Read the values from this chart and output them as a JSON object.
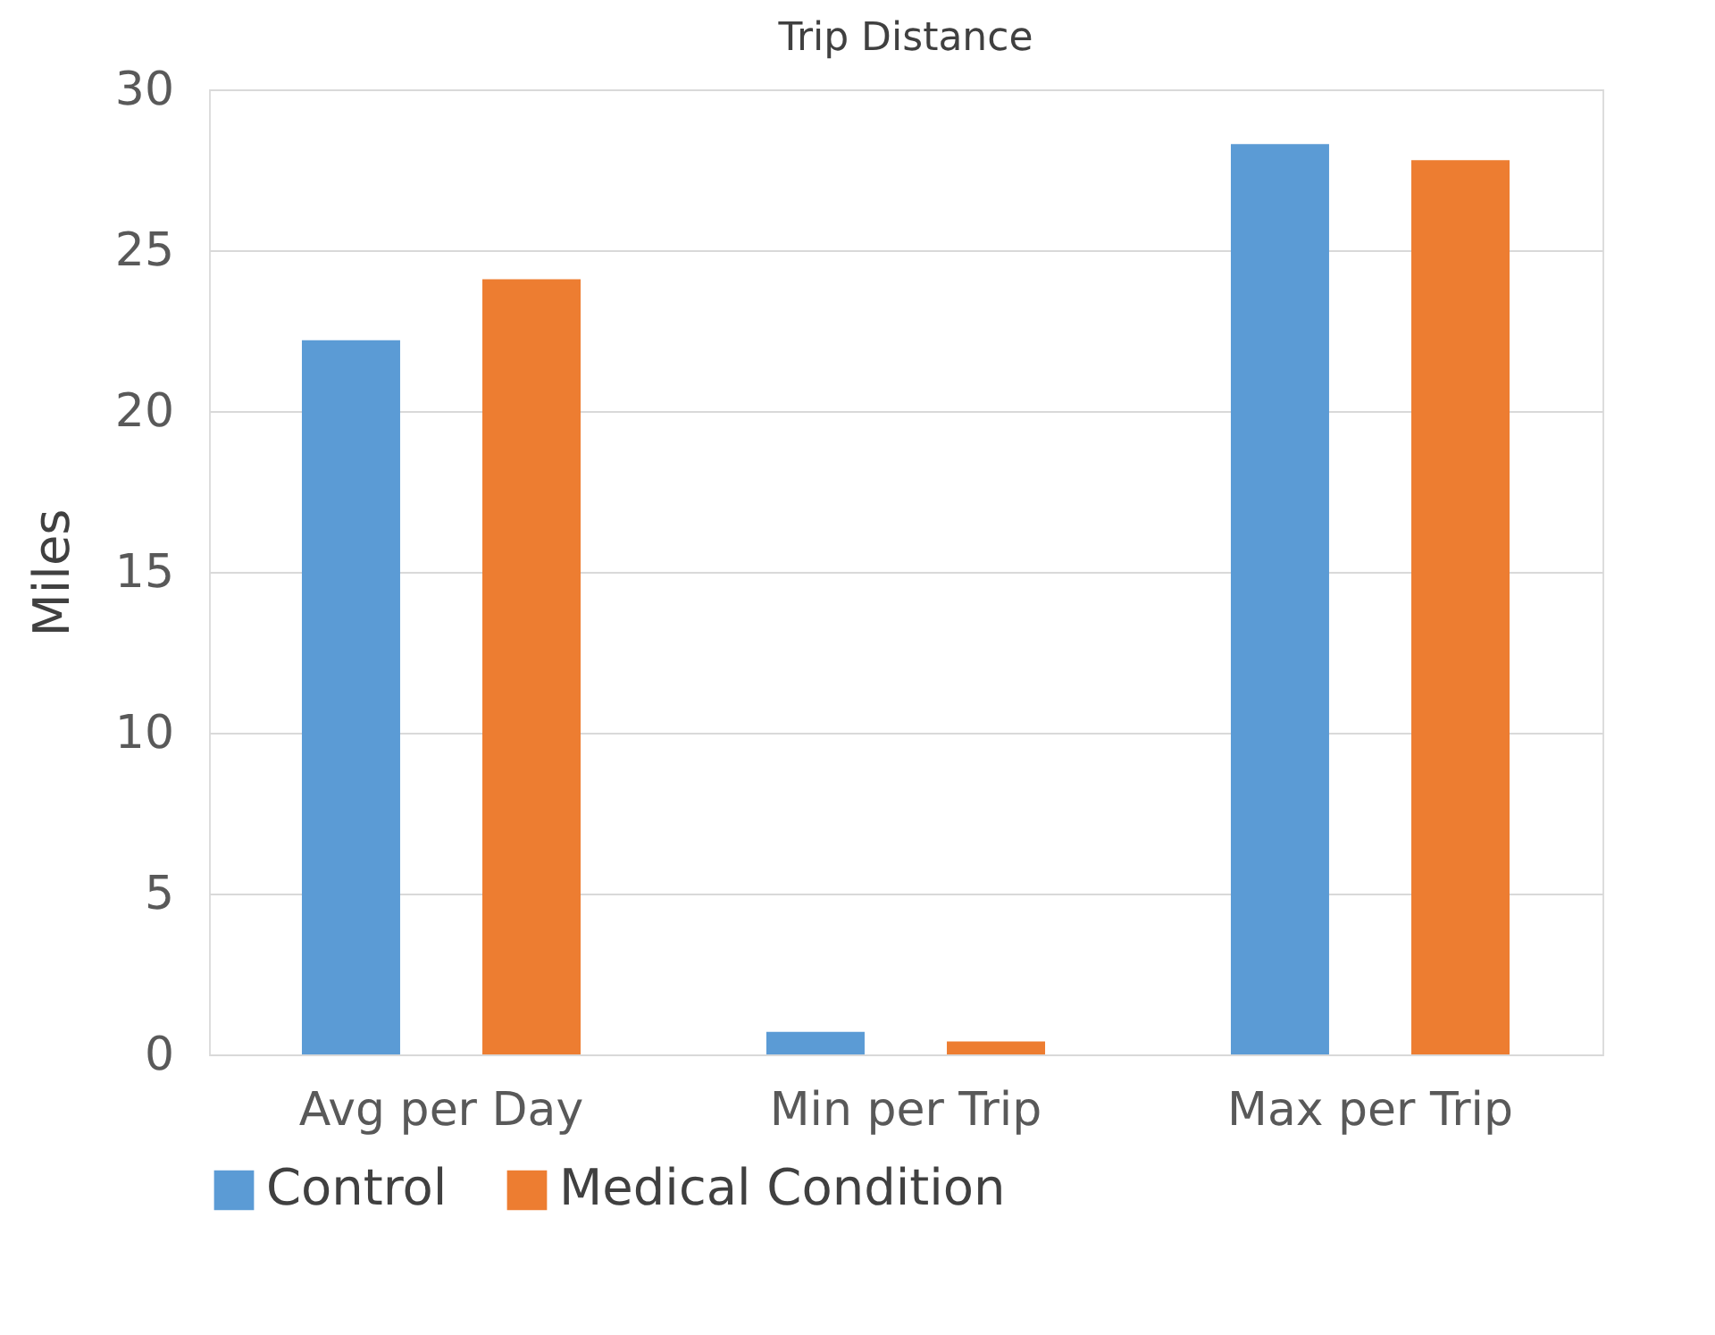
{
  "chart_data": {
    "type": "bar",
    "title": "Trip Distance",
    "ylabel": "Miles",
    "categories": [
      "Avg per Day",
      "Min per Trip",
      "Max per Trip"
    ],
    "series": [
      {
        "name": "Control",
        "color": "#5b9bd5",
        "values": [
          22.2,
          0.7,
          28.3
        ]
      },
      {
        "name": "Medical Condition",
        "color": "#ed7d31",
        "values": [
          24.1,
          0.4,
          27.8
        ]
      }
    ],
    "ylim": [
      0,
      30
    ],
    "yticks": [
      0,
      5,
      10,
      15,
      20,
      25,
      30
    ],
    "grid": "y",
    "legend": "bottom"
  }
}
